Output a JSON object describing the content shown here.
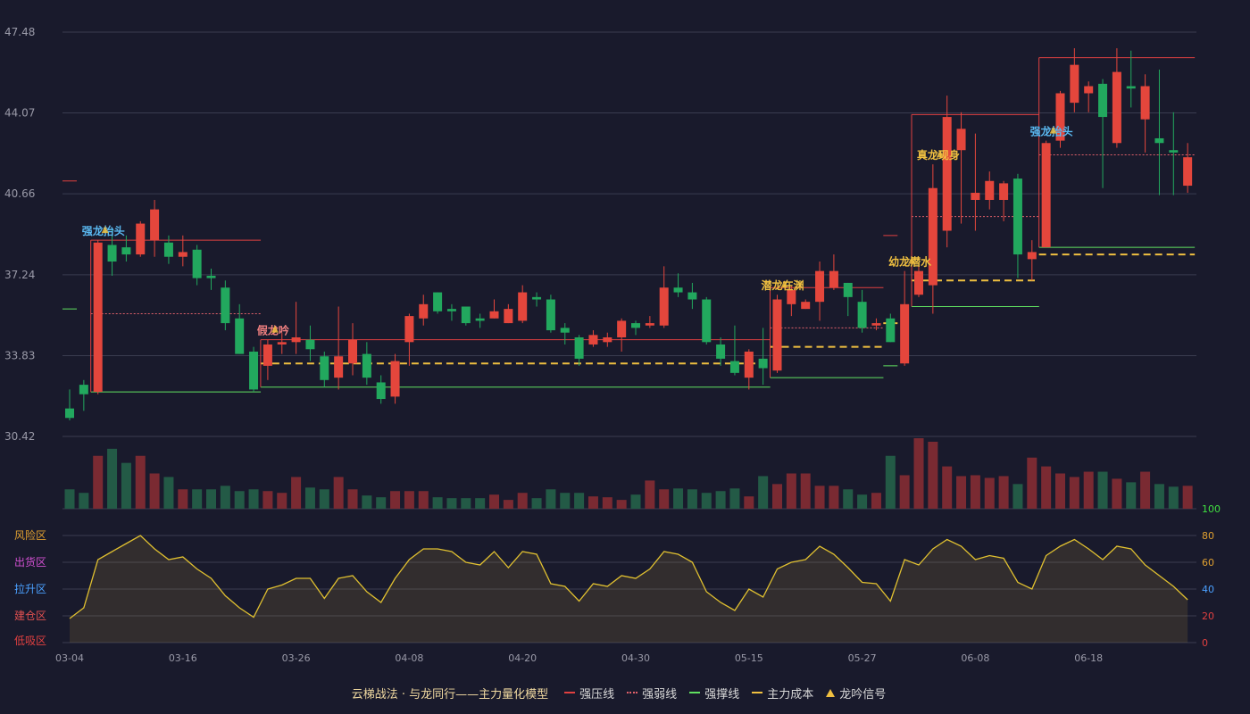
{
  "chart_data": {
    "type": "candlestick",
    "title": "",
    "y_axis": {
      "ticks": [
        47.48,
        44.07,
        40.66,
        37.24,
        33.83,
        30.42
      ],
      "ylim": [
        30.42,
        47.48
      ]
    },
    "volume_axis": {
      "ticks": []
    },
    "oscillator_axis": {
      "ticks": [
        0,
        20,
        40,
        60,
        80,
        100
      ],
      "ylim": [
        0,
        100
      ],
      "zones": [
        "风险区",
        "出货区",
        "拉升区",
        "建仓区",
        "低吸区"
      ],
      "zone_colors": [
        "#e0a030",
        "#d050d0",
        "#4aa0ff",
        "#e05050",
        "#e04040"
      ]
    },
    "x_tick_labels": [
      {
        "i": 0,
        "label": "03-04"
      },
      {
        "i": 8,
        "label": "03-16"
      },
      {
        "i": 16,
        "label": "03-26"
      },
      {
        "i": 24,
        "label": "04-08"
      },
      {
        "i": 32,
        "label": "04-20"
      },
      {
        "i": 40,
        "label": "04-30"
      },
      {
        "i": 48,
        "label": "05-15"
      },
      {
        "i": 56,
        "label": "05-27"
      },
      {
        "i": 64,
        "label": "06-08"
      },
      {
        "i": 72,
        "label": "06-18"
      }
    ],
    "candles": [
      [
        31.6,
        31.2,
        32.4,
        31.1
      ],
      [
        32.6,
        32.2,
        32.8,
        31.5
      ],
      [
        32.3,
        38.6,
        38.7,
        32.2
      ],
      [
        38.5,
        37.8,
        39.2,
        37.2
      ],
      [
        38.4,
        38.1,
        38.9,
        37.8
      ],
      [
        38.1,
        39.4,
        39.5,
        38.0
      ],
      [
        38.7,
        40.0,
        40.4,
        38.0
      ],
      [
        38.6,
        38.0,
        38.9,
        37.7
      ],
      [
        38.0,
        38.2,
        38.9,
        37.6
      ],
      [
        38.3,
        37.1,
        38.5,
        36.8
      ],
      [
        37.2,
        37.1,
        37.5,
        36.6
      ],
      [
        36.7,
        35.2,
        37.0,
        34.9
      ],
      [
        35.4,
        33.9,
        36.0,
        33.9
      ],
      [
        34.0,
        32.4,
        34.2,
        32.3
      ],
      [
        33.4,
        34.3,
        34.5,
        32.8
      ],
      [
        34.3,
        34.4,
        34.8,
        33.9
      ],
      [
        34.4,
        34.6,
        36.1,
        33.9
      ],
      [
        34.5,
        34.1,
        35.1,
        33.6
      ],
      [
        33.8,
        32.8,
        34.0,
        32.5
      ],
      [
        32.9,
        33.8,
        35.9,
        32.4
      ],
      [
        33.5,
        34.5,
        35.2,
        33.0
      ],
      [
        33.9,
        32.9,
        34.4,
        32.6
      ],
      [
        32.7,
        32.0,
        33.0,
        31.8
      ],
      [
        32.1,
        33.6,
        33.9,
        31.8
      ],
      [
        34.4,
        35.5,
        35.6,
        33.4
      ],
      [
        35.4,
        36.0,
        36.4,
        35.1
      ],
      [
        36.5,
        35.7,
        36.5,
        35.6
      ],
      [
        35.8,
        35.7,
        36.0,
        35.3
      ],
      [
        35.9,
        35.2,
        35.9,
        35.1
      ],
      [
        35.4,
        35.3,
        35.6,
        35.0
      ],
      [
        35.4,
        35.7,
        36.2,
        35.4
      ],
      [
        35.2,
        35.8,
        36.0,
        35.2
      ],
      [
        35.3,
        36.5,
        36.8,
        35.2
      ],
      [
        36.3,
        36.2,
        36.5,
        35.9
      ],
      [
        36.2,
        34.9,
        36.4,
        34.8
      ],
      [
        35.0,
        34.8,
        35.2,
        34.3
      ],
      [
        34.6,
        33.7,
        34.7,
        33.4
      ],
      [
        34.3,
        34.7,
        34.9,
        34.2
      ],
      [
        34.4,
        34.6,
        34.8,
        34.2
      ],
      [
        34.6,
        35.3,
        35.4,
        34.0
      ],
      [
        35.2,
        35.0,
        35.3,
        34.7
      ],
      [
        35.1,
        35.2,
        35.5,
        35.0
      ],
      [
        35.1,
        36.7,
        37.6,
        35.0
      ],
      [
        36.7,
        36.5,
        37.3,
        36.3
      ],
      [
        36.5,
        36.2,
        36.9,
        35.8
      ],
      [
        36.2,
        34.4,
        36.3,
        34.3
      ],
      [
        34.3,
        33.7,
        34.6,
        33.4
      ],
      [
        33.6,
        33.1,
        35.1,
        33.0
      ],
      [
        32.9,
        34.0,
        34.1,
        32.4
      ],
      [
        33.7,
        33.3,
        35.0,
        32.6
      ],
      [
        33.2,
        36.2,
        36.4,
        33.1
      ],
      [
        36.0,
        36.6,
        36.8,
        35.5
      ],
      [
        35.8,
        36.1,
        36.2,
        35.8
      ],
      [
        36.1,
        37.4,
        37.8,
        35.3
      ],
      [
        36.7,
        37.4,
        38.1,
        36.6
      ],
      [
        36.9,
        36.3,
        36.9,
        35.5
      ],
      [
        36.1,
        35.0,
        36.6,
        34.8
      ],
      [
        35.1,
        35.2,
        35.4,
        34.9
      ],
      [
        35.4,
        34.4,
        35.6,
        34.4
      ],
      [
        33.5,
        36.0,
        37.4,
        33.4
      ],
      [
        36.4,
        37.4,
        37.7,
        36.3
      ],
      [
        36.8,
        40.9,
        41.9,
        35.6
      ],
      [
        39.1,
        43.9,
        44.8,
        38.4
      ],
      [
        42.5,
        43.4,
        44.1,
        39.4
      ],
      [
        40.4,
        40.7,
        43.2,
        39.1
      ],
      [
        40.4,
        41.2,
        41.6,
        40.0
      ],
      [
        40.4,
        41.1,
        41.2,
        39.5
      ],
      [
        41.3,
        38.1,
        41.5,
        37.1
      ],
      [
        37.9,
        38.2,
        38.7,
        37.0
      ],
      [
        38.4,
        42.8,
        42.9,
        38.4
      ],
      [
        42.9,
        44.9,
        45.0,
        42.6
      ],
      [
        44.5,
        46.1,
        46.8,
        44.1
      ],
      [
        44.9,
        45.2,
        45.4,
        44.1
      ],
      [
        45.3,
        43.9,
        45.5,
        40.9
      ],
      [
        42.8,
        45.8,
        46.8,
        42.6
      ],
      [
        45.2,
        45.1,
        46.7,
        44.3
      ],
      [
        43.8,
        45.2,
        45.7,
        42.4
      ],
      [
        43.0,
        42.8,
        45.9,
        40.6
      ],
      [
        42.5,
        42.4,
        44.1,
        40.6
      ],
      [
        41.0,
        42.2,
        42.8,
        40.7
      ]
    ],
    "volume": [
      22,
      18,
      60,
      68,
      52,
      60,
      40,
      36,
      22,
      22,
      22,
      26,
      20,
      22,
      20,
      18,
      36,
      24,
      22,
      36,
      22,
      15,
      13,
      20,
      20,
      20,
      13,
      12,
      12,
      12,
      16,
      10,
      18,
      12,
      22,
      18,
      18,
      14,
      13,
      10,
      16,
      32,
      22,
      23,
      22,
      18,
      20,
      23,
      14,
      37,
      28,
      40,
      40,
      26,
      26,
      22,
      16,
      18,
      60,
      38,
      80,
      76,
      48,
      37,
      38,
      35,
      37,
      28,
      58,
      48,
      40,
      36,
      42,
      42,
      34,
      30,
      42,
      28,
      25,
      26
    ],
    "oscillator": [
      18,
      26,
      62,
      68,
      74,
      80,
      70,
      62,
      64,
      55,
      48,
      35,
      26,
      19,
      40,
      43,
      48,
      48,
      33,
      48,
      50,
      38,
      30,
      48,
      62,
      70,
      70,
      68,
      60,
      58,
      68,
      56,
      68,
      66,
      44,
      42,
      31,
      44,
      42,
      50,
      48,
      55,
      68,
      66,
      60,
      38,
      30,
      24,
      40,
      34,
      55,
      60,
      62,
      72,
      66,
      56,
      45,
      44,
      31,
      62,
      58,
      70,
      77,
      72,
      62,
      65,
      63,
      45,
      40,
      65,
      72,
      77,
      70,
      62,
      72,
      70,
      58,
      50,
      42,
      32
    ],
    "resistance_lines": [
      {
        "from": 0,
        "to": 0,
        "y": 41.2,
        "color": "#e04040",
        "style": "solid"
      },
      {
        "from": 2,
        "to": 13,
        "y": 38.7,
        "color": "#e04040",
        "style": "solid"
      },
      {
        "from": 2,
        "to": 13,
        "y": 35.6,
        "color": "#e0606a",
        "style": "dashed"
      },
      {
        "from": 14,
        "to": 49,
        "y": 34.5,
        "color": "#e04040",
        "style": "solid"
      },
      {
        "from": 50,
        "to": 57,
        "y": 36.7,
        "color": "#e04040",
        "style": "solid"
      },
      {
        "from": 50,
        "to": 57,
        "y": 35.0,
        "color": "#e0606a",
        "style": "dashed"
      },
      {
        "from": 58,
        "to": 58,
        "y": 38.9,
        "color": "#e04040",
        "style": "solid"
      },
      {
        "from": 60,
        "to": 68,
        "y": 44.0,
        "color": "#e04040",
        "style": "solid"
      },
      {
        "from": 60,
        "to": 68,
        "y": 39.7,
        "color": "#e0606a",
        "style": "dashed"
      },
      {
        "from": 69,
        "to": 79,
        "y": 46.4,
        "color": "#e04040",
        "style": "solid"
      },
      {
        "from": 69,
        "to": 79,
        "y": 42.3,
        "color": "#e0606a",
        "style": "dashed"
      }
    ],
    "support_lines": [
      {
        "from": 0,
        "to": 0,
        "y": 35.8,
        "color": "#60e060",
        "style": "solid"
      },
      {
        "from": 2,
        "to": 13,
        "y": 32.3,
        "color": "#60e060",
        "style": "solid"
      },
      {
        "from": 14,
        "to": 49,
        "y": 32.5,
        "color": "#60e060",
        "style": "solid"
      },
      {
        "from": 50,
        "to": 57,
        "y": 32.9,
        "color": "#60e060",
        "style": "solid"
      },
      {
        "from": 58,
        "to": 58,
        "y": 33.4,
        "color": "#60e060",
        "style": "solid"
      },
      {
        "from": 60,
        "to": 68,
        "y": 35.9,
        "color": "#60e060",
        "style": "solid"
      },
      {
        "from": 69,
        "to": 79,
        "y": 38.4,
        "color": "#60e060",
        "style": "solid"
      }
    ],
    "cost_lines": [
      {
        "from": 14,
        "to": 49,
        "y": 33.5
      },
      {
        "from": 50,
        "to": 57,
        "y": 34.2
      },
      {
        "from": 58,
        "to": 58,
        "y": 35.2
      },
      {
        "from": 60,
        "to": 68,
        "y": 37.0
      },
      {
        "from": 69,
        "to": 79,
        "y": 38.1
      }
    ],
    "signals": [
      {
        "i": 2,
        "label": "强龙抬头",
        "color": "#5ab8f0"
      },
      {
        "i": 14,
        "label": "假龙吟",
        "color": "#f08080"
      },
      {
        "i": 50,
        "label": "潜龙在渊",
        "color": "#f0c040"
      },
      {
        "i": 59,
        "label": "幼龙潜水",
        "color": "#f0c040"
      },
      {
        "i": 61,
        "label": "真龙现身",
        "color": "#f0c040"
      },
      {
        "i": 69,
        "label": "强龙抬头",
        "color": "#5ab8f0"
      }
    ]
  },
  "legend": {
    "title": "云梯战法 · 与龙同行——主力量化模型",
    "items": [
      {
        "label": "强压线",
        "color": "#e04040",
        "style": "solid"
      },
      {
        "label": "强弱线",
        "color": "#e0606a",
        "style": "dotted"
      },
      {
        "label": "强撑线",
        "color": "#60e060",
        "style": "solid"
      },
      {
        "label": "主力成本",
        "color": "#f0c040",
        "style": "dashed"
      },
      {
        "label": "龙吟信号",
        "color": "#f0c040",
        "style": "triangle"
      }
    ]
  },
  "colors": {
    "up": "#e4463c",
    "down": "#22a85e",
    "up_vol": "#7a2a32",
    "down_vol": "#235a46",
    "osc_line": "#e0c030",
    "grid": "#3a3c50",
    "axis_text": "#9a9aa8"
  }
}
